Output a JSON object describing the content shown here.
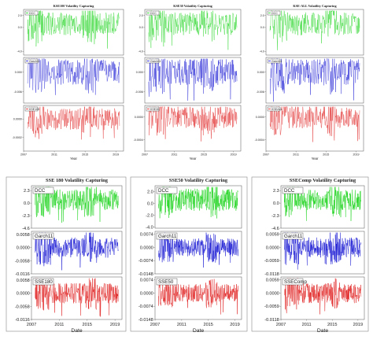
{
  "chart_data": [
    {
      "type": "line",
      "title": "KSE100 Volatility Capturing",
      "xlabel": "Year",
      "x_ticks": [
        "2007",
        "2011",
        "2015",
        "2019"
      ],
      "xlim": [
        2007,
        2020
      ],
      "panels": [
        {
          "name": "DCC",
          "color": "#19d219",
          "y_ticks": [
            "2.0",
            "0.0",
            "-4.0"
          ],
          "ylim": [
            -4.6,
            3.0
          ],
          "center": 0.6,
          "amp": 1.9
        },
        {
          "name": "Garch11",
          "color": "#1414d2",
          "y_ticks": [
            "0.000",
            "-0.006"
          ],
          "ylim": [
            -0.0095,
            0.0045
          ],
          "center": 0.0,
          "amp": 0.004
        },
        {
          "name": "KSE100",
          "color": "#e01e1e",
          "y_ticks": [
            "0.0000",
            "-0.0002"
          ],
          "ylim": [
            -0.00035,
            0.00015
          ],
          "center": 0.0,
          "amp": 0.00012
        }
      ]
    },
    {
      "type": "line",
      "title": "KSE30 Volatility Capturing",
      "xlabel": "Year",
      "x_ticks": [
        "2007",
        "2011",
        "2015",
        "2019"
      ],
      "xlim": [
        2007,
        2020
      ],
      "panels": [
        {
          "name": "DCC",
          "color": "#19d219",
          "y_ticks": [
            "2.0",
            "0.0",
            "-4.0"
          ],
          "ylim": [
            -4.6,
            3.0
          ],
          "center": 0.6,
          "amp": 1.9
        },
        {
          "name": "Garch11",
          "color": "#1414d2",
          "y_ticks": [
            "0.000",
            "-0.006"
          ],
          "ylim": [
            -0.0095,
            0.0045
          ],
          "center": 0.0,
          "amp": 0.004
        },
        {
          "name": "KSE30",
          "color": "#e01e1e",
          "y_ticks": [
            "0.0000",
            "-0.0004"
          ],
          "ylim": [
            -0.0006,
            0.0002
          ],
          "center": 0.0,
          "amp": 0.0002
        }
      ]
    },
    {
      "type": "line",
      "title": "KSE-ALL Volatility Capturing",
      "xlabel": "Year",
      "x_ticks": [
        "2007",
        "2011",
        "2015",
        "2019"
      ],
      "xlim": [
        2007,
        2020
      ],
      "panels": [
        {
          "name": "DCC",
          "color": "#19d219",
          "y_ticks": [
            "2.0",
            "0.0",
            "-4.0"
          ],
          "ylim": [
            -4.6,
            3.0
          ],
          "center": 0.6,
          "amp": 1.9
        },
        {
          "name": "Garch11",
          "color": "#1414d2",
          "y_ticks": [
            "0.000",
            "-0.006"
          ],
          "ylim": [
            -0.0095,
            0.0045
          ],
          "center": 0.0,
          "amp": 0.004
        },
        {
          "name": "KSEALL",
          "color": "#e01e1e",
          "y_ticks": [
            "0.0000",
            "-0.0004"
          ],
          "ylim": [
            -0.0006,
            0.0002
          ],
          "center": 0.0,
          "amp": 0.0002
        }
      ]
    },
    {
      "type": "line",
      "title": "SSE 180 Volatility Capturing",
      "xlabel": "Date",
      "x_ticks": [
        "2007",
        "2011",
        "2015",
        "2019"
      ],
      "xlim": [
        2007,
        2020
      ],
      "panels": [
        {
          "name": "DCC",
          "color": "#19d219",
          "y_ticks": [
            "2.3",
            "0.0",
            "-2.3",
            "-4.6"
          ],
          "ylim": [
            -4.6,
            3.2
          ],
          "center": 0.6,
          "amp": 1.9
        },
        {
          "name": "Garch11",
          "color": "#1414d2",
          "y_ticks": [
            "0.0058",
            "0.0000",
            "-0.0058",
            "-0.0116"
          ],
          "ylim": [
            -0.0116,
            0.0072
          ],
          "center": 0.0,
          "amp": 0.0045
        },
        {
          "name": "SSE180",
          "color": "#e01e1e",
          "y_ticks": [
            "0.0058",
            "0.0000",
            "-0.0058",
            "-0.0116"
          ],
          "ylim": [
            -0.0116,
            0.0072
          ],
          "center": 0.0,
          "amp": 0.0045
        }
      ]
    },
    {
      "type": "line",
      "title": "SSE50 Volatility Capturing",
      "xlabel": "Date",
      "x_ticks": [
        "2007",
        "2011",
        "2015",
        "2019"
      ],
      "xlim": [
        2007,
        2020
      ],
      "panels": [
        {
          "name": "DCC",
          "color": "#19d219",
          "y_ticks": [
            "2.0",
            "0.0",
            "-2.0",
            "-4.0"
          ],
          "ylim": [
            -4.2,
            3.0
          ],
          "center": 0.6,
          "amp": 1.9
        },
        {
          "name": "Garch11",
          "color": "#1414d2",
          "y_ticks": [
            "0.0074",
            "0.0000",
            "-0.0074",
            "-0.0148"
          ],
          "ylim": [
            -0.0148,
            0.009
          ],
          "center": 0.0,
          "amp": 0.005
        },
        {
          "name": "SSE50",
          "color": "#e01e1e",
          "y_ticks": [
            "0.0074",
            "0.0000",
            "-0.0074",
            "-0.0148"
          ],
          "ylim": [
            -0.0148,
            0.009
          ],
          "center": 0.0,
          "amp": 0.005
        }
      ]
    },
    {
      "type": "line",
      "title": "SSEComp Volatility Capturing",
      "xlabel": "Date",
      "x_ticks": [
        "2007",
        "2011",
        "2015",
        "2019"
      ],
      "xlim": [
        2007,
        2020
      ],
      "panels": [
        {
          "name": "DCC",
          "color": "#19d219",
          "y_ticks": [
            "2.3",
            "0.0",
            "-2.3",
            "-4.6"
          ],
          "ylim": [
            -4.6,
            3.2
          ],
          "center": 0.6,
          "amp": 1.9
        },
        {
          "name": "Garch11",
          "color": "#1414d2",
          "y_ticks": [
            "0.0059",
            "0.0000",
            "-0.0059",
            "-0.0118"
          ],
          "ylim": [
            -0.0118,
            0.0072
          ],
          "center": 0.0,
          "amp": 0.0045
        },
        {
          "name": "SSEComp",
          "color": "#e01e1e",
          "y_ticks": [
            "0.0059",
            "0.0000",
            "-0.0059",
            "-0.0118"
          ],
          "ylim": [
            -0.0118,
            0.0072
          ],
          "center": 0.0,
          "amp": 0.0045
        }
      ]
    }
  ]
}
